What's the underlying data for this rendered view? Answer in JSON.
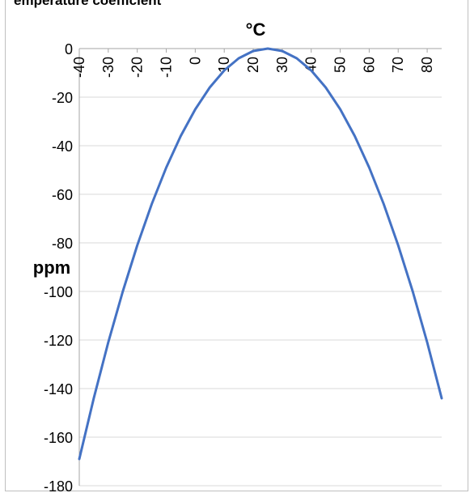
{
  "chart_data": {
    "type": "line",
    "title": "emperature coefficient",
    "xlabel": "°C",
    "ylabel": "ppm",
    "xlim": [
      -40,
      85
    ],
    "ylim": [
      -180,
      0
    ],
    "x_ticks": [
      -40,
      -30,
      -20,
      -10,
      0,
      10,
      20,
      30,
      40,
      50,
      60,
      70,
      80
    ],
    "y_ticks": [
      0,
      -20,
      -40,
      -60,
      -80,
      -100,
      -120,
      -140,
      -160,
      -180
    ],
    "x_axis_position": "top",
    "grid": "horizontal",
    "series": [
      {
        "color": "#4472c4",
        "x": [
          -40,
          -35,
          -30,
          -25,
          -20,
          -15,
          -10,
          -5,
          0,
          5,
          10,
          15,
          20,
          25,
          30,
          35,
          40,
          45,
          50,
          55,
          60,
          65,
          70,
          75,
          80,
          85
        ],
        "y": [
          -169,
          -144,
          -121,
          -100,
          -81,
          -64,
          -49,
          -36,
          -25,
          -16,
          -9,
          -4,
          -1,
          0,
          -1,
          -4,
          -9,
          -16,
          -25,
          -36,
          -49,
          -64,
          -81,
          -100,
          -121,
          -144
        ]
      }
    ]
  }
}
